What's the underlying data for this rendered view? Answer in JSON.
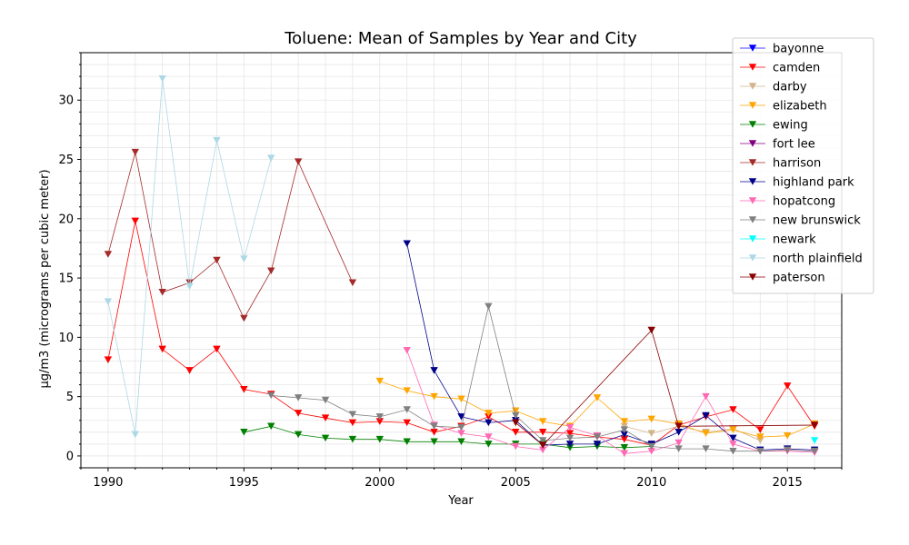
{
  "chart_data": {
    "type": "line",
    "title": "Toluene: Mean of Samples by Year and City",
    "xlabel": "Year",
    "ylabel": "µg/m3 (micrograms per cubic meter)",
    "xlim": [
      1989,
      2017
    ],
    "ylim": [
      -1,
      34
    ],
    "xticks": [
      1990,
      1995,
      2000,
      2005,
      2010,
      2015
    ],
    "yticks": [
      0,
      5,
      10,
      15,
      20,
      25,
      30
    ],
    "grid": true,
    "marker": "triangle-down",
    "legend_position": "top-right",
    "series": [
      {
        "name": "bayonne",
        "color": "#0000ff",
        "x": [
          2016
        ],
        "y": [
          0.4
        ]
      },
      {
        "name": "camden",
        "color": "#ff0000",
        "x": [
          1990,
          1991,
          1992,
          1993,
          1994,
          1995,
          1996,
          1997,
          1998,
          1999,
          2000,
          2001,
          2002,
          2003,
          2004,
          2005,
          2006,
          2007,
          2008,
          2009,
          2010,
          2011,
          2012,
          2013,
          2014,
          2015,
          2016
        ],
        "y": [
          8.1,
          19.8,
          9.0,
          7.2,
          9.0,
          5.6,
          5.2,
          3.6,
          3.2,
          2.8,
          2.9,
          2.8,
          2.0,
          2.5,
          3.3,
          2.0,
          2.0,
          1.9,
          1.6,
          1.4,
          0.9,
          2.6,
          3.3,
          3.9,
          2.2,
          5.9,
          2.5
        ]
      },
      {
        "name": "darby",
        "color": "#d2b48c",
        "x": [
          2009,
          2010,
          2011,
          2012,
          2013,
          2014
        ],
        "y": [
          2.5,
          1.9,
          2.5,
          2.0,
          2.3,
          1.3
        ]
      },
      {
        "name": "elizabeth",
        "color": "#ffa500",
        "x": [
          2000,
          2001,
          2002,
          2003,
          2004,
          2005,
          2006,
          2007,
          2008,
          2009,
          2010,
          2011,
          2012,
          2013,
          2014,
          2015,
          2016
        ],
        "y": [
          6.3,
          5.5,
          5.0,
          4.8,
          3.6,
          3.8,
          2.9,
          2.5,
          4.9,
          2.9,
          3.1,
          2.7,
          1.9,
          2.2,
          1.6,
          1.7,
          2.7
        ]
      },
      {
        "name": "ewing",
        "color": "#008000",
        "x": [
          1995,
          1996,
          1997,
          1998,
          1999,
          2000,
          2001,
          2002,
          2003,
          2004,
          2005,
          2006,
          2007,
          2008,
          2009,
          2010
        ],
        "y": [
          2.0,
          2.5,
          1.8,
          1.5,
          1.4,
          1.4,
          1.2,
          1.2,
          1.2,
          1.0,
          1.0,
          1.0,
          0.7,
          0.8,
          0.7,
          0.8
        ]
      },
      {
        "name": "fort lee",
        "color": "#800080",
        "x": [
          2016
        ],
        "y": [
          0.3
        ]
      },
      {
        "name": "harrison",
        "color": "#a52a2a",
        "x": [
          1990,
          1991,
          1992,
          1993,
          1994,
          1995,
          1996,
          1997,
          1999
        ],
        "y": [
          17.0,
          25.6,
          13.8,
          14.6,
          16.5,
          11.6,
          15.6,
          24.8,
          14.6
        ]
      },
      {
        "name": "highland park",
        "color": "#00008b",
        "x": [
          2001,
          2002,
          2003,
          2004,
          2005,
          2006,
          2007,
          2008,
          2009,
          2010,
          2011,
          2012,
          2013,
          2014,
          2015,
          2016
        ],
        "y": [
          17.9,
          7.2,
          3.3,
          2.8,
          3.0,
          0.9,
          1.0,
          1.0,
          1.8,
          1.0,
          2.0,
          3.4,
          1.5,
          0.5,
          0.6,
          0.5
        ]
      },
      {
        "name": "hopatcong",
        "color": "#ff69b4",
        "x": [
          2001,
          2002,
          2003,
          2004,
          2005,
          2006,
          2007,
          2008,
          2009,
          2010,
          2011,
          2012,
          2013,
          2014,
          2015,
          2016
        ],
        "y": [
          8.9,
          2.6,
          1.9,
          1.6,
          0.8,
          0.5,
          2.4,
          1.7,
          0.2,
          0.4,
          1.1,
          5.0,
          1.0,
          0.4,
          0.4,
          0.3
        ]
      },
      {
        "name": "new brunswick",
        "color": "#808080",
        "x": [
          1996,
          1997,
          1998,
          1999,
          2000,
          2001,
          2002,
          2003,
          2004,
          2005,
          2006,
          2007,
          2008,
          2009,
          2010,
          2011,
          2012,
          2013,
          2014,
          2015,
          2016
        ],
        "y": [
          5.1,
          4.9,
          4.7,
          3.5,
          3.3,
          3.9,
          2.5,
          2.4,
          12.6,
          3.4,
          1.3,
          1.5,
          1.6,
          2.2,
          0.8,
          0.6,
          0.6,
          0.4,
          0.4,
          0.5,
          0.4
        ]
      },
      {
        "name": "newark",
        "color": "#00ffff",
        "x": [
          2016
        ],
        "y": [
          1.3
        ]
      },
      {
        "name": "north plainfield",
        "color": "#add8e6",
        "x": [
          1990,
          1991,
          1992,
          1993,
          1994,
          1995,
          1996
        ],
        "y": [
          13.0,
          1.8,
          31.8,
          14.3,
          26.6,
          16.6,
          25.1
        ]
      },
      {
        "name": "paterson",
        "color": "#8b0000",
        "x": [
          2005,
          2006,
          2010,
          2011,
          2016
        ],
        "y": [
          2.8,
          0.9,
          10.6,
          2.5,
          2.6
        ]
      }
    ]
  }
}
